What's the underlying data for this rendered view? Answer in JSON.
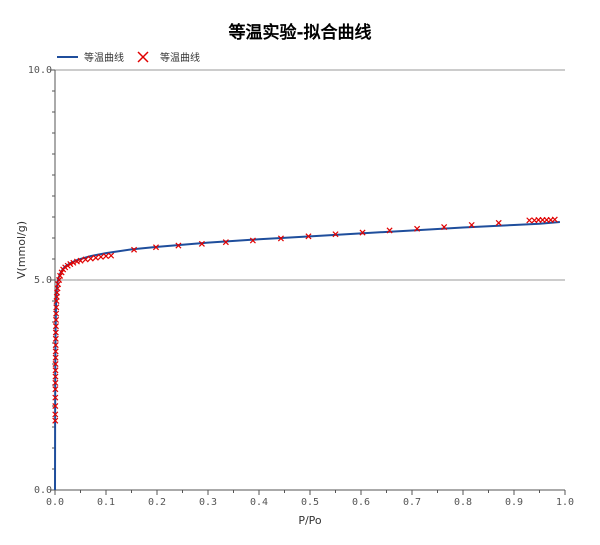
{
  "chart_data": {
    "type": "line",
    "title": "等温实验-拟合曲线",
    "xlabel": "P/Po",
    "ylabel": "V(mmol/g)",
    "xlim": [
      0.0,
      1.0
    ],
    "ylim": [
      0.0,
      10.0
    ],
    "x_ticks": [
      "0.0",
      "0.1",
      "0.2",
      "0.3",
      "0.4",
      "0.5",
      "0.6",
      "0.7",
      "0.8",
      "0.9",
      "1.0"
    ],
    "y_ticks": [
      "0.0",
      "5.0",
      "10.0"
    ],
    "y_tick_values": [
      0,
      5,
      10
    ],
    "grid": "horizontal",
    "legend_position": "top-left",
    "colors": {
      "fit": "#1f4e9c",
      "experiment": "#e00000",
      "grid": "#999999",
      "axis": "#555555"
    },
    "series": [
      {
        "name": "等温曲线",
        "style": "line",
        "x": [
          0.0,
          0.0002,
          0.0005,
          0.001,
          0.002,
          0.003,
          0.005,
          0.007,
          0.01,
          0.015,
          0.02,
          0.03,
          0.04,
          0.05,
          0.07,
          0.1,
          0.15,
          0.2,
          0.3,
          0.4,
          0.5,
          0.6,
          0.7,
          0.8,
          0.9,
          0.95,
          0.99
        ],
        "y": [
          0.0,
          1.5,
          2.8,
          3.7,
          4.4,
          4.7,
          4.95,
          5.05,
          5.15,
          5.25,
          5.32,
          5.4,
          5.46,
          5.5,
          5.57,
          5.64,
          5.73,
          5.79,
          5.89,
          5.97,
          6.04,
          6.11,
          6.18,
          6.25,
          6.31,
          6.34,
          6.38
        ]
      },
      {
        "name": "等温曲线",
        "style": "marker",
        "x": [
          0.0005,
          0.0005,
          0.0006,
          0.0006,
          0.0007,
          0.0008,
          0.0009,
          0.001,
          0.0011,
          0.0012,
          0.0013,
          0.0014,
          0.0015,
          0.0016,
          0.0018,
          0.002,
          0.0022,
          0.0025,
          0.003,
          0.0035,
          0.004,
          0.005,
          0.006,
          0.008,
          0.01,
          0.013,
          0.016,
          0.02,
          0.025,
          0.03,
          0.036,
          0.043,
          0.05,
          0.06,
          0.07,
          0.08,
          0.09,
          0.1,
          0.11,
          0.155,
          0.198,
          0.242,
          0.288,
          0.335,
          0.388,
          0.443,
          0.497,
          0.55,
          0.603,
          0.656,
          0.71,
          0.763,
          0.817,
          0.87,
          0.93,
          0.94,
          0.948,
          0.956,
          0.964,
          0.972,
          0.98
        ],
        "y": [
          1.65,
          1.8,
          2.0,
          2.2,
          2.4,
          2.55,
          2.7,
          2.85,
          3.0,
          3.15,
          3.3,
          3.45,
          3.6,
          3.75,
          3.9,
          4.05,
          4.2,
          4.35,
          4.5,
          4.6,
          4.7,
          4.8,
          4.9,
          5.0,
          5.1,
          5.18,
          5.25,
          5.3,
          5.34,
          5.38,
          5.41,
          5.44,
          5.46,
          5.49,
          5.51,
          5.53,
          5.55,
          5.57,
          5.58,
          5.72,
          5.78,
          5.82,
          5.86,
          5.9,
          5.94,
          5.99,
          6.04,
          6.09,
          6.13,
          6.18,
          6.22,
          6.26,
          6.31,
          6.36,
          6.42,
          6.42,
          6.43,
          6.43,
          6.43,
          6.43,
          6.44
        ]
      }
    ]
  }
}
